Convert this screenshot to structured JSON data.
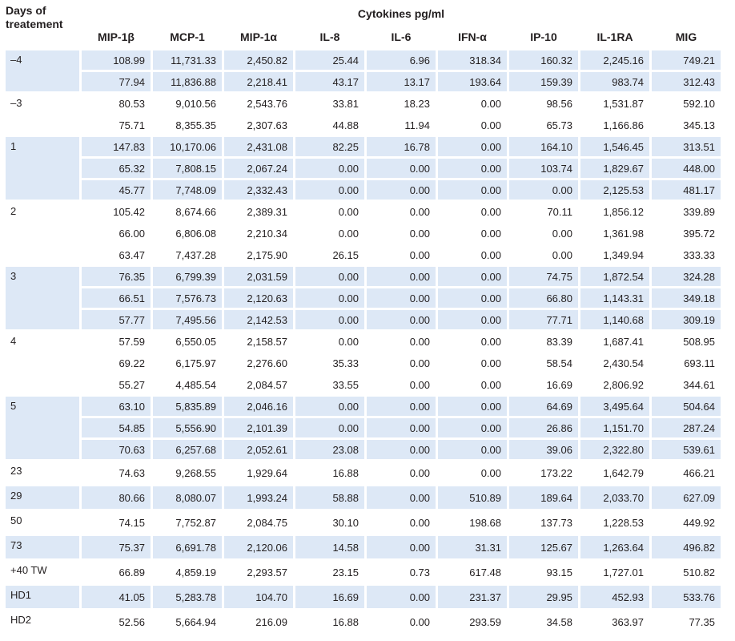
{
  "header": {
    "days_label": "Days of treatement",
    "group_label": "Cytokines pg/ml",
    "columns": [
      "MIP-1β",
      "MCP-1",
      "MIP-1α",
      "IL-8",
      "IL-6",
      "IFN-α",
      "IP-10",
      "IL-1RA",
      "MIG"
    ]
  },
  "groups": [
    {
      "day": "–4",
      "shaded": true,
      "rows": [
        [
          "108.99",
          "11,731.33",
          "2,450.82",
          "25.44",
          "6.96",
          "318.34",
          "160.32",
          "2,245.16",
          "749.21"
        ],
        [
          "77.94",
          "11,836.88",
          "2,218.41",
          "43.17",
          "13.17",
          "193.64",
          "159.39",
          "983.74",
          "312.43"
        ]
      ]
    },
    {
      "day": "–3",
      "shaded": false,
      "rows": [
        [
          "80.53",
          "9,010.56",
          "2,543.76",
          "33.81",
          "18.23",
          "0.00",
          "98.56",
          "1,531.87",
          "592.10"
        ],
        [
          "75.71",
          "8,355.35",
          "2,307.63",
          "44.88",
          "11.94",
          "0.00",
          "65.73",
          "1,166.86",
          "345.13"
        ]
      ]
    },
    {
      "day": "1",
      "shaded": true,
      "rows": [
        [
          "147.83",
          "10,170.06",
          "2,431.08",
          "82.25",
          "16.78",
          "0.00",
          "164.10",
          "1,546.45",
          "313.51"
        ],
        [
          "65.32",
          "7,808.15",
          "2,067.24",
          "0.00",
          "0.00",
          "0.00",
          "103.74",
          "1,829.67",
          "448.00"
        ],
        [
          "45.77",
          "7,748.09",
          "2,332.43",
          "0.00",
          "0.00",
          "0.00",
          "0.00",
          "2,125.53",
          "481.17"
        ]
      ]
    },
    {
      "day": "2",
      "shaded": false,
      "rows": [
        [
          "105.42",
          "8,674.66",
          "2,389.31",
          "0.00",
          "0.00",
          "0.00",
          "70.11",
          "1,856.12",
          "339.89"
        ],
        [
          "66.00",
          "6,806.08",
          "2,210.34",
          "0.00",
          "0.00",
          "0.00",
          "0.00",
          "1,361.98",
          "395.72"
        ],
        [
          "63.47",
          "7,437.28",
          "2,175.90",
          "26.15",
          "0.00",
          "0.00",
          "0.00",
          "1,349.94",
          "333.33"
        ]
      ]
    },
    {
      "day": "3",
      "shaded": true,
      "rows": [
        [
          "76.35",
          "6,799.39",
          "2,031.59",
          "0.00",
          "0.00",
          "0.00",
          "74.75",
          "1,872.54",
          "324.28"
        ],
        [
          "66.51",
          "7,576.73",
          "2,120.63",
          "0.00",
          "0.00",
          "0.00",
          "66.80",
          "1,143.31",
          "349.18"
        ],
        [
          "57.77",
          "7,495.56",
          "2,142.53",
          "0.00",
          "0.00",
          "0.00",
          "77.71",
          "1,140.68",
          "309.19"
        ]
      ]
    },
    {
      "day": "4",
      "shaded": false,
      "rows": [
        [
          "57.59",
          "6,550.05",
          "2,158.57",
          "0.00",
          "0.00",
          "0.00",
          "83.39",
          "1,687.41",
          "508.95"
        ],
        [
          "69.22",
          "6,175.97",
          "2,276.60",
          "35.33",
          "0.00",
          "0.00",
          "58.54",
          "2,430.54",
          "693.11"
        ],
        [
          "55.27",
          "4,485.54",
          "2,084.57",
          "33.55",
          "0.00",
          "0.00",
          "16.69",
          "2,806.92",
          "344.61"
        ]
      ]
    },
    {
      "day": "5",
      "shaded": true,
      "rows": [
        [
          "63.10",
          "5,835.89",
          "2,046.16",
          "0.00",
          "0.00",
          "0.00",
          "64.69",
          "3,495.64",
          "504.64"
        ],
        [
          "54.85",
          "5,556.90",
          "2,101.39",
          "0.00",
          "0.00",
          "0.00",
          "26.86",
          "1,151.70",
          "287.24"
        ],
        [
          "70.63",
          "6,257.68",
          "2,052.61",
          "23.08",
          "0.00",
          "0.00",
          "39.06",
          "2,322.80",
          "539.61"
        ]
      ]
    },
    {
      "day": "23",
      "shaded": false,
      "rows": [
        [
          "74.63",
          "9,268.55",
          "1,929.64",
          "16.88",
          "0.00",
          "0.00",
          "173.22",
          "1,642.79",
          "466.21"
        ]
      ]
    },
    {
      "day": "29",
      "shaded": true,
      "rows": [
        [
          "80.66",
          "8,080.07",
          "1,993.24",
          "58.88",
          "0.00",
          "510.89",
          "189.64",
          "2,033.70",
          "627.09"
        ]
      ]
    },
    {
      "day": "50",
      "shaded": false,
      "rows": [
        [
          "74.15",
          "7,752.87",
          "2,084.75",
          "30.10",
          "0.00",
          "198.68",
          "137.73",
          "1,228.53",
          "449.92"
        ]
      ]
    },
    {
      "day": "73",
      "shaded": true,
      "rows": [
        [
          "75.37",
          "6,691.78",
          "2,120.06",
          "14.58",
          "0.00",
          "31.31",
          "125.67",
          "1,263.64",
          "496.82"
        ]
      ]
    },
    {
      "day": "+40 TW",
      "shaded": false,
      "rows": [
        [
          "66.89",
          "4,859.19",
          "2,293.57",
          "23.15",
          "0.73",
          "617.48",
          "93.15",
          "1,727.01",
          "510.82"
        ]
      ]
    },
    {
      "day": "HD1",
      "shaded": true,
      "rows": [
        [
          "41.05",
          "5,283.78",
          "104.70",
          "16.69",
          "0.00",
          "231.37",
          "29.95",
          "452.93",
          "533.76"
        ]
      ]
    },
    {
      "day": "HD2",
      "shaded": false,
      "rows": [
        [
          "52.56",
          "5,664.94",
          "216.09",
          "16.88",
          "0.00",
          "293.59",
          "34.58",
          "363.97",
          "77.35"
        ]
      ]
    }
  ]
}
